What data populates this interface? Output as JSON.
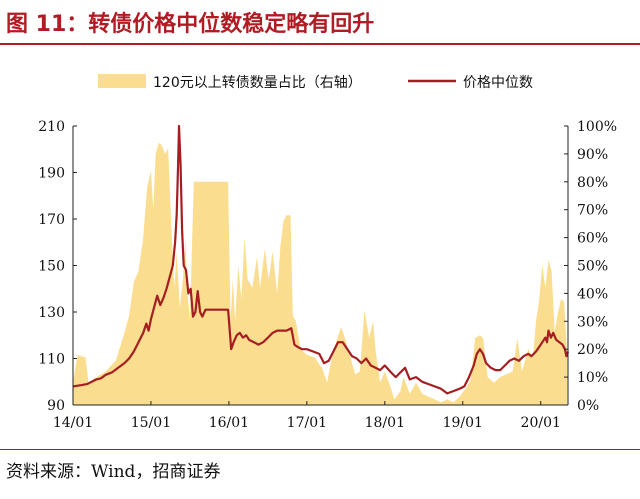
{
  "figure": {
    "title": "图 11：转债价格中位数稳定略有回升",
    "source": "资料来源：Wind，招商证券"
  },
  "colors": {
    "area": "#fbdd8f",
    "line": "#a41e22",
    "title": "#b01c23"
  },
  "chart_data": {
    "type": "line",
    "title": "",
    "legend_position": "top",
    "grid": false,
    "x_axis": {
      "ticks": [
        "14/01",
        "15/01",
        "16/01",
        "17/01",
        "18/01",
        "19/01",
        "20/01"
      ],
      "range": [
        2014.0,
        2020.35
      ]
    },
    "y_left": {
      "ticks": [
        "90",
        "110",
        "130",
        "150",
        "170",
        "190",
        "210"
      ],
      "range": [
        90,
        210
      ],
      "unit": ""
    },
    "y_right": {
      "ticks": [
        "0%",
        "10%",
        "20%",
        "30%",
        "40%",
        "50%",
        "60%",
        "70%",
        "80%",
        "90%",
        "100%"
      ],
      "range": [
        0,
        100
      ],
      "unit": "%"
    },
    "series": [
      {
        "name": "120元以上转债数量占比（右轴）",
        "kind": "area",
        "axis": "right",
        "points": [
          [
            2014.0,
            8
          ],
          [
            2014.04,
            15
          ],
          [
            2014.06,
            18
          ],
          [
            2014.16,
            17
          ],
          [
            2014.2,
            8
          ],
          [
            2014.3,
            10
          ],
          [
            2014.42,
            12
          ],
          [
            2014.55,
            16
          ],
          [
            2014.65,
            25
          ],
          [
            2014.72,
            32
          ],
          [
            2014.78,
            44
          ],
          [
            2014.84,
            48
          ],
          [
            2014.9,
            60
          ],
          [
            2014.95,
            78
          ],
          [
            2015.0,
            84
          ],
          [
            2015.03,
            70
          ],
          [
            2015.06,
            90
          ],
          [
            2015.1,
            94
          ],
          [
            2015.14,
            93
          ],
          [
            2015.18,
            90
          ],
          [
            2015.22,
            92
          ],
          [
            2015.26,
            65
          ],
          [
            2015.3,
            42
          ],
          [
            2015.33,
            55
          ],
          [
            2015.37,
            35
          ],
          [
            2015.41,
            45
          ],
          [
            2015.44,
            60
          ],
          [
            2015.47,
            40
          ],
          [
            2015.5,
            30
          ],
          [
            2015.55,
            80
          ],
          [
            2015.58,
            80
          ],
          [
            2015.62,
            80
          ],
          [
            2015.66,
            80
          ],
          [
            2015.7,
            80
          ],
          [
            2015.74,
            80
          ],
          [
            2015.78,
            80
          ],
          [
            2015.82,
            80
          ],
          [
            2015.86,
            80
          ],
          [
            2015.9,
            80
          ],
          [
            2015.95,
            80
          ],
          [
            2015.99,
            80
          ],
          [
            2016.02,
            30
          ],
          [
            2016.05,
            45
          ],
          [
            2016.08,
            30
          ],
          [
            2016.12,
            50
          ],
          [
            2016.16,
            38
          ],
          [
            2016.2,
            60
          ],
          [
            2016.24,
            45
          ],
          [
            2016.3,
            42
          ],
          [
            2016.36,
            53
          ],
          [
            2016.4,
            42
          ],
          [
            2016.46,
            56
          ],
          [
            2016.51,
            45
          ],
          [
            2016.56,
            55
          ],
          [
            2016.62,
            40
          ],
          [
            2016.66,
            57
          ],
          [
            2016.7,
            66
          ],
          [
            2016.74,
            68
          ],
          [
            2016.79,
            68
          ],
          [
            2016.82,
            32
          ],
          [
            2016.86,
            30
          ],
          [
            2016.92,
            20
          ],
          [
            2017.0,
            18
          ],
          [
            2017.1,
            17
          ],
          [
            2017.2,
            13
          ],
          [
            2017.26,
            8
          ],
          [
            2017.32,
            17
          ],
          [
            2017.38,
            23
          ],
          [
            2017.44,
            28
          ],
          [
            2017.5,
            23
          ],
          [
            2017.56,
            17
          ],
          [
            2017.62,
            11
          ],
          [
            2017.68,
            12
          ],
          [
            2017.74,
            34
          ],
          [
            2017.8,
            24
          ],
          [
            2017.85,
            30
          ],
          [
            2017.88,
            20
          ],
          [
            2017.94,
            8
          ],
          [
            2018.0,
            12
          ],
          [
            2018.08,
            6
          ],
          [
            2018.12,
            2
          ],
          [
            2018.2,
            5
          ],
          [
            2018.24,
            10
          ],
          [
            2018.32,
            4
          ],
          [
            2018.4,
            8
          ],
          [
            2018.48,
            4
          ],
          [
            2018.56,
            3
          ],
          [
            2018.64,
            2
          ],
          [
            2018.72,
            1
          ],
          [
            2018.8,
            2
          ],
          [
            2018.88,
            1
          ],
          [
            2018.96,
            3
          ],
          [
            2019.04,
            6
          ],
          [
            2019.1,
            9
          ],
          [
            2019.16,
            24
          ],
          [
            2019.22,
            25
          ],
          [
            2019.26,
            24
          ],
          [
            2019.32,
            10
          ],
          [
            2019.4,
            8
          ],
          [
            2019.48,
            10
          ],
          [
            2019.56,
            11
          ],
          [
            2019.64,
            12
          ],
          [
            2019.7,
            24
          ],
          [
            2019.76,
            12
          ],
          [
            2019.84,
            20
          ],
          [
            2019.9,
            17
          ],
          [
            2019.94,
            30
          ],
          [
            2019.98,
            38
          ],
          [
            2020.02,
            50
          ],
          [
            2020.06,
            42
          ],
          [
            2020.1,
            52
          ],
          [
            2020.14,
            48
          ],
          [
            2020.18,
            26
          ],
          [
            2020.22,
            33
          ],
          [
            2020.26,
            38
          ],
          [
            2020.3,
            37
          ],
          [
            2020.34,
            18
          ]
        ]
      },
      {
        "name": "价格中位数",
        "kind": "line",
        "axis": "left",
        "points": [
          [
            2014.0,
            98
          ],
          [
            2014.1,
            98.5
          ],
          [
            2014.18,
            99
          ],
          [
            2014.24,
            100
          ],
          [
            2014.3,
            101
          ],
          [
            2014.36,
            101.5
          ],
          [
            2014.42,
            103
          ],
          [
            2014.5,
            104
          ],
          [
            2014.58,
            106
          ],
          [
            2014.66,
            108
          ],
          [
            2014.72,
            110
          ],
          [
            2014.78,
            113
          ],
          [
            2014.84,
            117
          ],
          [
            2014.9,
            121
          ],
          [
            2014.94,
            125
          ],
          [
            2014.97,
            122
          ],
          [
            2015.0,
            127
          ],
          [
            2015.04,
            132
          ],
          [
            2015.08,
            137
          ],
          [
            2015.12,
            133
          ],
          [
            2015.16,
            136
          ],
          [
            2015.2,
            140
          ],
          [
            2015.24,
            145
          ],
          [
            2015.28,
            150
          ],
          [
            2015.31,
            160
          ],
          [
            2015.33,
            172
          ],
          [
            2015.35,
            195
          ],
          [
            2015.36,
            210
          ],
          [
            2015.38,
            193
          ],
          [
            2015.4,
            165
          ],
          [
            2015.42,
            150
          ],
          [
            2015.45,
            148
          ],
          [
            2015.48,
            138
          ],
          [
            2015.51,
            140
          ],
          [
            2015.54,
            128
          ],
          [
            2015.57,
            130
          ],
          [
            2015.6,
            139
          ],
          [
            2015.63,
            130
          ],
          [
            2015.66,
            128
          ],
          [
            2015.7,
            131
          ],
          [
            2015.78,
            131
          ],
          [
            2015.86,
            131
          ],
          [
            2015.94,
            131
          ],
          [
            2015.99,
            131
          ],
          [
            2016.03,
            114
          ],
          [
            2016.06,
            117
          ],
          [
            2016.1,
            120
          ],
          [
            2016.14,
            121
          ],
          [
            2016.18,
            119
          ],
          [
            2016.22,
            120
          ],
          [
            2016.26,
            118
          ],
          [
            2016.32,
            117
          ],
          [
            2016.38,
            116
          ],
          [
            2016.44,
            117
          ],
          [
            2016.5,
            119
          ],
          [
            2016.56,
            121
          ],
          [
            2016.62,
            122
          ],
          [
            2016.68,
            122
          ],
          [
            2016.74,
            122
          ],
          [
            2016.8,
            123
          ],
          [
            2016.84,
            116
          ],
          [
            2016.88,
            115
          ],
          [
            2016.94,
            114
          ],
          [
            2017.0,
            114
          ],
          [
            2017.08,
            113
          ],
          [
            2017.16,
            112
          ],
          [
            2017.22,
            108
          ],
          [
            2017.28,
            109
          ],
          [
            2017.34,
            113
          ],
          [
            2017.4,
            117
          ],
          [
            2017.46,
            117
          ],
          [
            2017.52,
            114
          ],
          [
            2017.58,
            111
          ],
          [
            2017.64,
            110
          ],
          [
            2017.7,
            108
          ],
          [
            2017.76,
            110
          ],
          [
            2017.82,
            107
          ],
          [
            2017.88,
            106
          ],
          [
            2017.94,
            105
          ],
          [
            2018.0,
            107
          ],
          [
            2018.08,
            104
          ],
          [
            2018.14,
            102
          ],
          [
            2018.2,
            104
          ],
          [
            2018.26,
            106
          ],
          [
            2018.32,
            101
          ],
          [
            2018.4,
            102
          ],
          [
            2018.48,
            100
          ],
          [
            2018.56,
            99
          ],
          [
            2018.64,
            98
          ],
          [
            2018.72,
            97
          ],
          [
            2018.8,
            95
          ],
          [
            2018.88,
            96
          ],
          [
            2018.96,
            97
          ],
          [
            2019.02,
            98
          ],
          [
            2019.08,
            102
          ],
          [
            2019.14,
            107
          ],
          [
            2019.18,
            112
          ],
          [
            2019.22,
            114
          ],
          [
            2019.26,
            112
          ],
          [
            2019.3,
            108
          ],
          [
            2019.36,
            106
          ],
          [
            2019.42,
            105
          ],
          [
            2019.48,
            105
          ],
          [
            2019.54,
            107
          ],
          [
            2019.6,
            109
          ],
          [
            2019.66,
            110
          ],
          [
            2019.72,
            109
          ],
          [
            2019.78,
            111
          ],
          [
            2019.84,
            112
          ],
          [
            2019.88,
            111
          ],
          [
            2019.94,
            113
          ],
          [
            2019.98,
            115
          ],
          [
            2020.02,
            117
          ],
          [
            2020.06,
            119
          ],
          [
            2020.08,
            117
          ],
          [
            2020.1,
            122
          ],
          [
            2020.13,
            119
          ],
          [
            2020.16,
            121
          ],
          [
            2020.2,
            118
          ],
          [
            2020.24,
            117
          ],
          [
            2020.28,
            116
          ],
          [
            2020.31,
            114
          ],
          [
            2020.33,
            111
          ],
          [
            2020.35,
            113
          ]
        ]
      }
    ]
  }
}
